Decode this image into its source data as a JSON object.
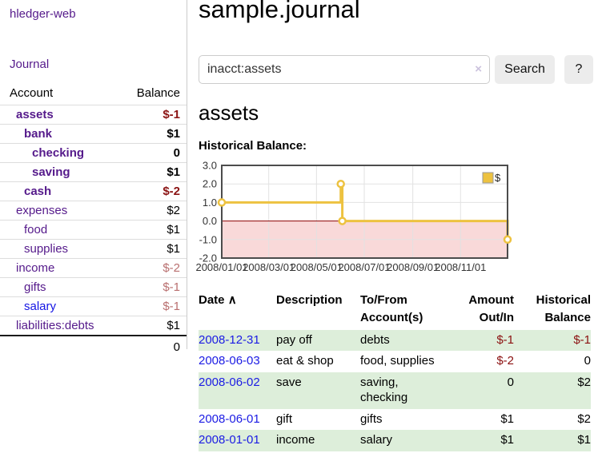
{
  "sidebar": {
    "app_title": "hledger-web",
    "journal_label": "Journal",
    "accounts_table": {
      "account_header": "Account",
      "balance_header": "Balance",
      "rows": [
        {
          "name": "assets",
          "balance": "$-1"
        },
        {
          "name": "bank",
          "balance": "$1"
        },
        {
          "name": "checking",
          "balance": "0"
        },
        {
          "name": "saving",
          "balance": "$1"
        },
        {
          "name": "cash",
          "balance": "$-2"
        },
        {
          "name": "expenses",
          "balance": "$2"
        },
        {
          "name": "food",
          "balance": "$1"
        },
        {
          "name": "supplies",
          "balance": "$1"
        },
        {
          "name": "income",
          "balance": "$-2"
        },
        {
          "name": "gifts",
          "balance": "$-1"
        },
        {
          "name": "salary",
          "balance": "$-1"
        },
        {
          "name": "liabilities:debts",
          "balance": "$1"
        }
      ],
      "total": "0"
    }
  },
  "header": {
    "title": "sample.journal"
  },
  "search": {
    "value": "inacct:assets",
    "clear_icon": "×",
    "button_label": "Search",
    "help_label": "?"
  },
  "account_page": {
    "title": "assets",
    "chart_label": "Historical Balance:"
  },
  "chart_data": {
    "type": "line",
    "step": true,
    "title": "Historical Balance",
    "series": [
      {
        "name": "$",
        "points": [
          [
            "2008-01-01",
            1
          ],
          [
            "2008-06-01",
            2
          ],
          [
            "2008-06-03",
            0
          ],
          [
            "2008-12-31",
            -1
          ]
        ]
      }
    ],
    "xlim": [
      "2008-01-01",
      "2008-12-31"
    ],
    "ylim": [
      -2,
      3
    ],
    "yticks": [
      3.0,
      2.0,
      1.0,
      0.0,
      -1.0,
      -2.0
    ],
    "xticks": [
      "2008/01/01",
      "2008/03/01",
      "2008/05/01",
      "2008/07/01",
      "2008/09/01",
      "2008/11/01"
    ],
    "legend_position": "top-right",
    "grid": true,
    "colors": {
      "line": "#edc240",
      "marker_fill": "#ffffff",
      "zero_line": "#8b0000",
      "negative_region": "#f9d9d9",
      "grid": "#e2e2e2",
      "border": "#4c4c4c",
      "tick_text": "#333333"
    }
  },
  "register": {
    "sort_icon": "∧",
    "columns": {
      "date": "Date",
      "description": "Description",
      "tofrom_line1": "To/From",
      "tofrom_line2": "Account(s)",
      "amount_line1": "Amount",
      "amount_line2": "Out/In",
      "hist_line1": "Historical",
      "hist_line2": "Balance"
    },
    "rows": [
      {
        "date": "2008-12-31",
        "description": "pay off",
        "accounts": "debts",
        "amount": "$-1",
        "balance": "$-1"
      },
      {
        "date": "2008-06-03",
        "description": "eat & shop",
        "accounts": "food, supplies",
        "amount": "$-2",
        "balance": "0"
      },
      {
        "date": "2008-06-02",
        "description": "save",
        "accounts": "saving, checking",
        "amount": "0",
        "balance": "$2"
      },
      {
        "date": "2008-06-01",
        "description": "gift",
        "accounts": "gifts",
        "amount": "$1",
        "balance": "$2"
      },
      {
        "date": "2008-01-01",
        "description": "income",
        "accounts": "salary",
        "amount": "$1",
        "balance": "$1"
      }
    ]
  }
}
